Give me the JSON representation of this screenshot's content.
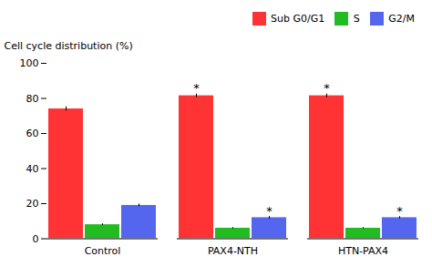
{
  "chart_data": {
    "type": "bar",
    "categories": [
      "Control",
      "PAX4-NTH",
      "HTN-PAX4"
    ],
    "series": [
      {
        "name": "Sub G0/G1",
        "color": "#FF3333",
        "values": [
          74.0,
          81.5,
          81.5
        ],
        "errors": [
          1.2,
          1.0,
          1.0
        ],
        "annotations": [
          null,
          "*",
          "*"
        ]
      },
      {
        "name": "S",
        "color": "#22BB22",
        "values": [
          8.0,
          6.0,
          6.0
        ],
        "errors": [
          0.5,
          0.4,
          0.4
        ],
        "annotations": [
          null,
          null,
          null
        ]
      },
      {
        "name": "G2/M",
        "color": "#5566EE",
        "values": [
          19.0,
          12.0,
          12.0
        ],
        "errors": [
          0.8,
          0.7,
          0.6
        ],
        "annotations": [
          null,
          "*",
          "*"
        ]
      }
    ],
    "ylabel": "Cell cycle distribution (%)",
    "ylim": [
      0,
      100
    ],
    "yticks": [
      0,
      20,
      40,
      60,
      80,
      100
    ],
    "legend": "upper right",
    "grid": false
  }
}
